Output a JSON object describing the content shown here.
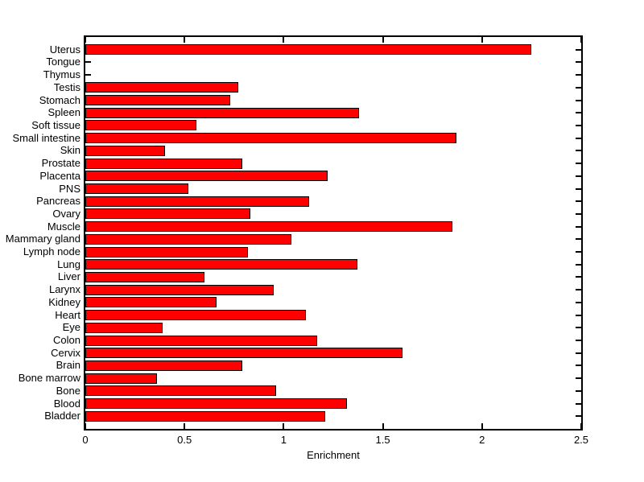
{
  "chart_data": {
    "type": "bar",
    "orientation": "horizontal",
    "title": "",
    "xlabel": "Enrichment",
    "ylabel": "",
    "xlim": [
      0,
      2.5
    ],
    "xticks": [
      0,
      0.5,
      1,
      1.5,
      2,
      2.5
    ],
    "xtick_labels": [
      "0",
      "0.5",
      "1",
      "1.5",
      "2",
      "2.5"
    ],
    "grid": false,
    "legend": null,
    "bar_color": "#ff0000",
    "bar_border_color": "#000000",
    "axis_color": "#000000",
    "background_color": "#ffffff",
    "categories": [
      "Uterus",
      "Tongue",
      "Thymus",
      "Testis",
      "Stomach",
      "Spleen",
      "Soft tissue",
      "Small intestine",
      "Skin",
      "Prostate",
      "Placenta",
      "PNS",
      "Pancreas",
      "Ovary",
      "Muscle",
      "Mammary gland",
      "Lymph node",
      "Lung",
      "Liver",
      "Larynx",
      "Kidney",
      "Heart",
      "Eye",
      "Colon",
      "Cervix",
      "Brain",
      "Bone marrow",
      "Bone",
      "Blood",
      "Bladder"
    ],
    "values": [
      2.25,
      0,
      0,
      0.77,
      0.73,
      1.38,
      0.56,
      1.87,
      0.4,
      0.79,
      1.22,
      0.52,
      1.13,
      0.83,
      1.85,
      1.04,
      0.82,
      1.37,
      0.6,
      0.95,
      0.66,
      1.11,
      0.39,
      1.17,
      1.6,
      0.79,
      0.36,
      0.96,
      1.32,
      1.21
    ]
  }
}
